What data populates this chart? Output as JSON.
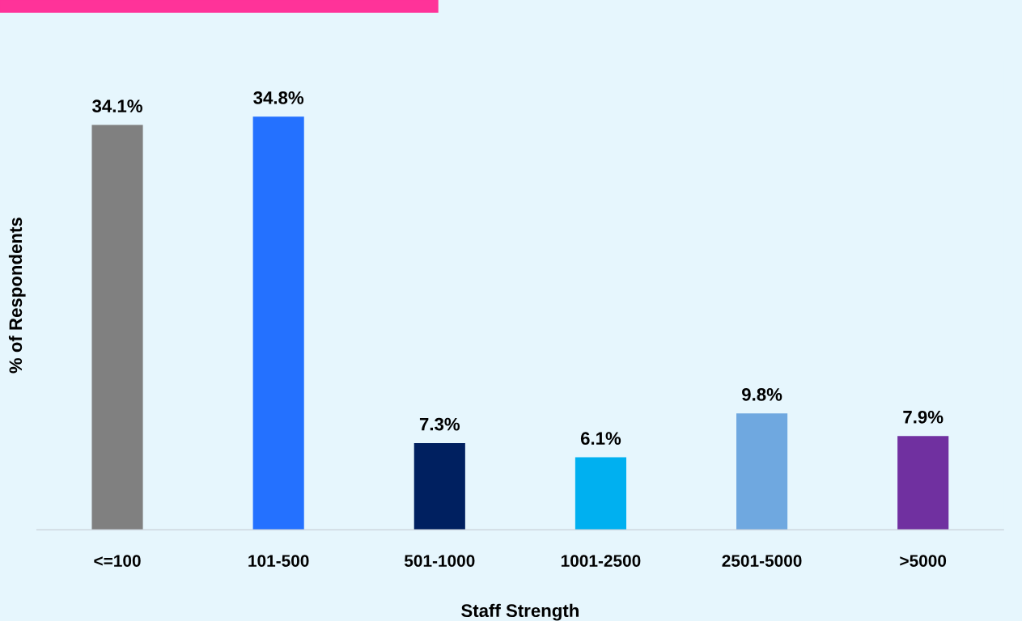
{
  "chart_data": {
    "type": "bar",
    "xlabel": "Staff Strength",
    "ylabel": "% of Respondents",
    "categories": [
      "<=100",
      "101-500",
      "501-1000",
      "1001-2500",
      "2501-5000",
      ">5000"
    ],
    "values": [
      34.1,
      34.8,
      7.3,
      6.1,
      9.8,
      7.9
    ],
    "colors": [
      "#808080",
      "#2471ff",
      "#002060",
      "#00b0f0",
      "#6fa8e0",
      "#7030a0"
    ],
    "value_labels": [
      "34.1%",
      "34.8%",
      "7.3%",
      "6.1%",
      "9.8%",
      "7.9%"
    ],
    "tick_labels": "x",
    "grid": false,
    "legend": false
  }
}
